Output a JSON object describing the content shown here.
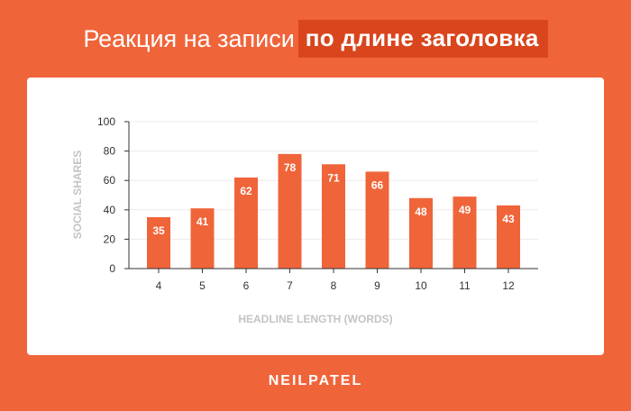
{
  "header": {
    "title_plain": "Реакция на записи",
    "title_highlight": "по длине заголовка"
  },
  "brand": "NEILPATEL",
  "colors": {
    "background": "#f0643a",
    "bar": "#f0643a",
    "title_highlight_bg": "#d9451c"
  },
  "chart_data": {
    "type": "bar",
    "categories": [
      "4",
      "5",
      "6",
      "7",
      "8",
      "9",
      "10",
      "11",
      "12"
    ],
    "values": [
      35,
      41,
      62,
      78,
      71,
      66,
      48,
      49,
      43
    ],
    "title": "",
    "xlabel": "HEADLINE LENGTH (WORDS)",
    "ylabel": "SOCIAL SHARES",
    "ylim": [
      0,
      100
    ],
    "yticks": [
      0,
      20,
      40,
      60,
      80,
      100
    ],
    "grid": true,
    "data_labels": true
  }
}
